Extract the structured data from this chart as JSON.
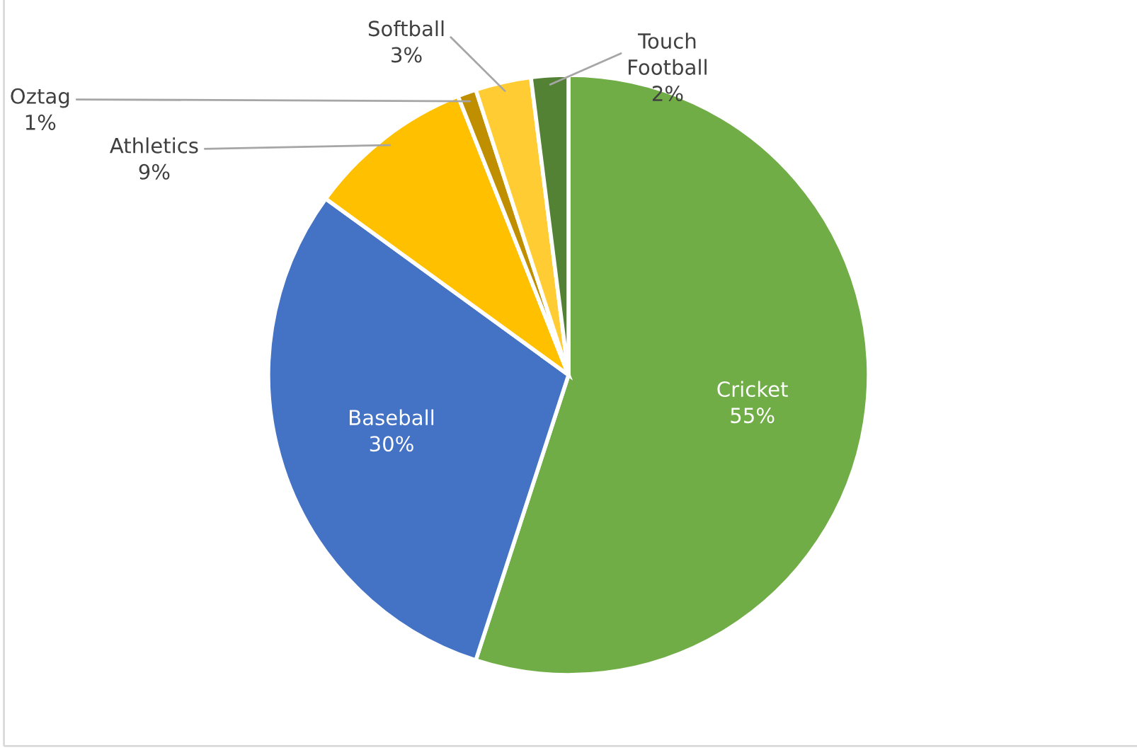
{
  "chart_data": {
    "type": "pie",
    "categories": [
      "Cricket",
      "Baseball",
      "Athletics",
      "Oztag",
      "Softball",
      "Touch Football"
    ],
    "values": [
      55,
      30,
      9,
      1,
      3,
      2
    ],
    "value_labels": [
      "55%",
      "30%",
      "9%",
      "1%",
      "3%",
      "2%"
    ],
    "colors": [
      "#70ad47",
      "#4472c4",
      "#ffc000",
      "#bf8f00",
      "#ffcd33",
      "#548235"
    ],
    "legend": false
  }
}
